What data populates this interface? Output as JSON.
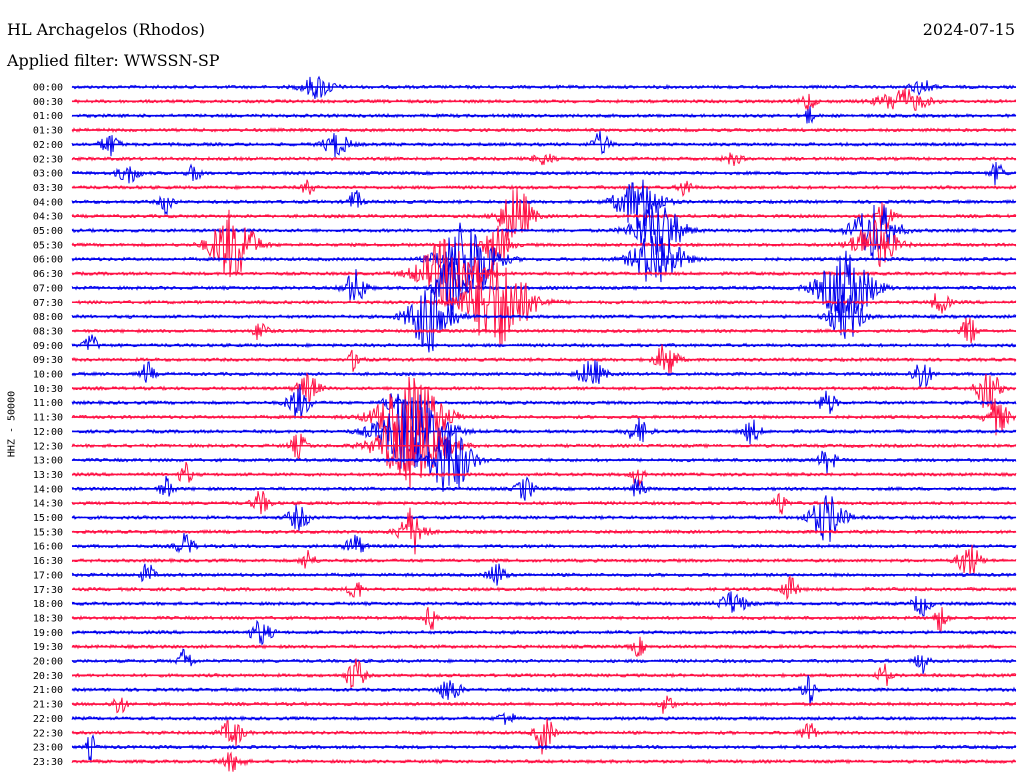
{
  "header": {
    "station": "HL Archagelos (Rhodos)",
    "filter": "Applied filter: WWSSN-SP",
    "date": "2024-07-15"
  },
  "chart_data": {
    "type": "line",
    "title": "HL Archagelos (Rhodos)",
    "ylabel": "HHZ - 50000",
    "colors": [
      "#0000ee",
      "#ff1044"
    ],
    "grid": false,
    "rows": [
      "00:00",
      "00:30",
      "01:00",
      "01:30",
      "02:00",
      "02:30",
      "03:00",
      "03:30",
      "04:00",
      "04:30",
      "05:00",
      "05:30",
      "06:00",
      "06:30",
      "07:00",
      "07:30",
      "08:00",
      "08:30",
      "09:00",
      "09:30",
      "10:00",
      "10:30",
      "11:00",
      "11:30",
      "12:00",
      "12:30",
      "13:00",
      "13:30",
      "14:00",
      "14:30",
      "15:00",
      "15:30",
      "16:00",
      "16:30",
      "17:00",
      "17:30",
      "18:00",
      "18:30",
      "19:00",
      "19:30",
      "20:00",
      "20:30",
      "21:00",
      "21:30",
      "22:00",
      "22:30",
      "23:00",
      "23:30"
    ],
    "events": [
      [
        0,
        0.26,
        14,
        1.0
      ],
      [
        1,
        0.88,
        22,
        1.0
      ],
      [
        0,
        0.9,
        10,
        0.6
      ],
      [
        1,
        0.78,
        6,
        0.9
      ],
      [
        2,
        0.78,
        5,
        0.8
      ],
      [
        4,
        0.04,
        8,
        1.0
      ],
      [
        4,
        0.28,
        12,
        1.0
      ],
      [
        4,
        0.56,
        8,
        1.0
      ],
      [
        5,
        0.5,
        10,
        0.5
      ],
      [
        5,
        0.7,
        8,
        0.5
      ],
      [
        6,
        0.06,
        10,
        0.8
      ],
      [
        6,
        0.13,
        6,
        0.8
      ],
      [
        6,
        0.98,
        6,
        1.0
      ],
      [
        7,
        0.25,
        5,
        0.8
      ],
      [
        7,
        0.65,
        6,
        0.8
      ],
      [
        8,
        0.1,
        6,
        1.0
      ],
      [
        8,
        0.3,
        6,
        1.0
      ],
      [
        8,
        0.6,
        20,
        2.2
      ],
      [
        9,
        0.47,
        15,
        2.5
      ],
      [
        9,
        0.86,
        8,
        1.5
      ],
      [
        10,
        0.62,
        22,
        2.5
      ],
      [
        10,
        0.85,
        20,
        2.5
      ],
      [
        11,
        0.17,
        20,
        3.0
      ],
      [
        11,
        0.45,
        12,
        1.8
      ],
      [
        11,
        0.85,
        20,
        2.0
      ],
      [
        12,
        0.62,
        22,
        2.5
      ],
      [
        12,
        0.42,
        25,
        3.5
      ],
      [
        13,
        0.4,
        28,
        3.0
      ],
      [
        14,
        0.3,
        10,
        1.5
      ],
      [
        14,
        0.4,
        12,
        3.0
      ],
      [
        14,
        0.82,
        25,
        3.0
      ],
      [
        15,
        0.45,
        30,
        4.0
      ],
      [
        15,
        0.92,
        8,
        1.0
      ],
      [
        16,
        0.38,
        20,
        3.0
      ],
      [
        16,
        0.82,
        15,
        2.0
      ],
      [
        17,
        0.2,
        6,
        1.0
      ],
      [
        17,
        0.95,
        6,
        1.5
      ],
      [
        18,
        0.02,
        6,
        1.0
      ],
      [
        19,
        0.3,
        6,
        1.0
      ],
      [
        19,
        0.63,
        10,
        1.5
      ],
      [
        20,
        0.08,
        6,
        1.0
      ],
      [
        20,
        0.55,
        12,
        1.2
      ],
      [
        20,
        0.9,
        8,
        1.5
      ],
      [
        21,
        0.25,
        10,
        1.2
      ],
      [
        21,
        0.97,
        10,
        2.0
      ],
      [
        22,
        0.24,
        10,
        1.5
      ],
      [
        22,
        0.34,
        8,
        1.0
      ],
      [
        22,
        0.8,
        8,
        1.0
      ],
      [
        23,
        0.36,
        30,
        3.5
      ],
      [
        23,
        0.98,
        10,
        1.5
      ],
      [
        24,
        0.36,
        30,
        3.5
      ],
      [
        24,
        0.6,
        10,
        1.0
      ],
      [
        24,
        0.72,
        8,
        1.0
      ],
      [
        25,
        0.24,
        8,
        1.0
      ],
      [
        25,
        0.36,
        30,
        3.5
      ],
      [
        26,
        0.4,
        20,
        3.0
      ],
      [
        26,
        0.8,
        8,
        1.0
      ],
      [
        27,
        0.12,
        6,
        1.0
      ],
      [
        27,
        0.6,
        6,
        1.0
      ],
      [
        28,
        0.1,
        6,
        1.0
      ],
      [
        28,
        0.48,
        8,
        1.0
      ],
      [
        28,
        0.6,
        6,
        1.0
      ],
      [
        29,
        0.2,
        8,
        1.0
      ],
      [
        29,
        0.75,
        6,
        1.0
      ],
      [
        30,
        0.24,
        10,
        1.0
      ],
      [
        30,
        0.8,
        16,
        2.0
      ],
      [
        31,
        0.36,
        12,
        2.0
      ],
      [
        32,
        0.12,
        8,
        1.0
      ],
      [
        32,
        0.3,
        8,
        1.0
      ],
      [
        33,
        0.25,
        6,
        1.0
      ],
      [
        33,
        0.95,
        10,
        1.5
      ],
      [
        34,
        0.08,
        6,
        1.0
      ],
      [
        34,
        0.45,
        8,
        1.0
      ],
      [
        35,
        0.3,
        6,
        1.0
      ],
      [
        35,
        0.76,
        8,
        1.0
      ],
      [
        36,
        0.7,
        12,
        1.0
      ],
      [
        36,
        0.9,
        8,
        1.0
      ],
      [
        37,
        0.38,
        6,
        1.0
      ],
      [
        37,
        0.92,
        6,
        1.2
      ],
      [
        38,
        0.2,
        10,
        1.0
      ],
      [
        39,
        0.6,
        6,
        0.8
      ],
      [
        40,
        0.12,
        6,
        1.2
      ],
      [
        40,
        0.9,
        6,
        1.0
      ],
      [
        41,
        0.3,
        8,
        1.5
      ],
      [
        41,
        0.86,
        6,
        1.0
      ],
      [
        42,
        0.4,
        10,
        1.0
      ],
      [
        42,
        0.78,
        6,
        1.5
      ],
      [
        43,
        0.05,
        6,
        1.0
      ],
      [
        43,
        0.63,
        6,
        1.0
      ],
      [
        44,
        0.46,
        8,
        0.6
      ],
      [
        45,
        0.17,
        10,
        1.2
      ],
      [
        45,
        0.5,
        8,
        1.8
      ],
      [
        45,
        0.78,
        6,
        1.2
      ],
      [
        46,
        0.02,
        4,
        1.2
      ],
      [
        47,
        0.17,
        10,
        0.8
      ]
    ]
  }
}
